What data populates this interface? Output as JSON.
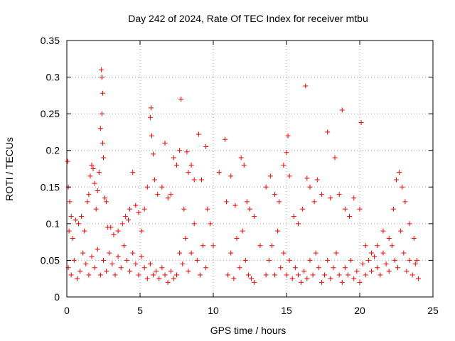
{
  "chart_data": {
    "type": "scatter",
    "title": "Day 242 of 2024, Rate Of TEC Index for receiver mtbu",
    "xlabel": "GPS time / hours",
    "ylabel": "ROTI / TECUs",
    "xlim": [
      0,
      25
    ],
    "ylim": [
      0,
      0.35
    ],
    "x_ticks": [
      0,
      5,
      10,
      15,
      20,
      25
    ],
    "y_ticks": [
      0,
      0.05,
      0.1,
      0.15,
      0.2,
      0.25,
      0.3,
      0.35
    ],
    "x_tick_labels": [
      "0",
      "5",
      "10",
      "15",
      "20",
      "25"
    ],
    "y_tick_labels": [
      "0",
      "0.05",
      "0.1",
      "0.15",
      "0.2",
      "0.25",
      "0.3",
      "0.35"
    ],
    "grid": true,
    "legend": "none",
    "marker": "plus",
    "color": "#ff0000",
    "series": [
      {
        "values": [
          [
            0.05,
            0.185
          ],
          [
            0.1,
            0.15
          ],
          [
            0.2,
            0.13
          ],
          [
            0.15,
            0.09
          ],
          [
            0.3,
            0.11
          ],
          [
            0.4,
            0.08
          ],
          [
            0.6,
            0.105
          ],
          [
            0.8,
            0.1
          ],
          [
            1.0,
            0.11
          ],
          [
            1.2,
            0.09
          ],
          [
            1.4,
            0.13
          ],
          [
            1.5,
            0.14
          ],
          [
            1.6,
            0.165
          ],
          [
            1.7,
            0.18
          ],
          [
            1.8,
            0.175
          ],
          [
            1.9,
            0.155
          ],
          [
            2.0,
            0.12
          ],
          [
            2.1,
            0.145
          ],
          [
            2.2,
            0.17
          ],
          [
            2.3,
            0.23
          ],
          [
            2.35,
            0.31
          ],
          [
            2.4,
            0.3
          ],
          [
            2.45,
            0.278
          ],
          [
            2.4,
            0.25
          ],
          [
            2.45,
            0.21
          ],
          [
            2.5,
            0.19
          ],
          [
            2.6,
            0.135
          ],
          [
            2.7,
            0.13
          ],
          [
            2.8,
            0.095
          ],
          [
            3.0,
            0.095
          ],
          [
            3.2,
            0.085
          ],
          [
            3.5,
            0.09
          ],
          [
            3.8,
            0.1
          ],
          [
            4.0,
            0.11
          ],
          [
            4.2,
            0.105
          ],
          [
            4.3,
            0.12
          ],
          [
            4.5,
            0.17
          ],
          [
            4.7,
            0.125
          ],
          [
            4.9,
            0.115
          ],
          [
            5.1,
            0.09
          ],
          [
            5.3,
            0.12
          ],
          [
            5.5,
            0.15
          ],
          [
            5.7,
            0.245
          ],
          [
            5.75,
            0.258
          ],
          [
            5.8,
            0.22
          ],
          [
            5.9,
            0.195
          ],
          [
            6.0,
            0.16
          ],
          [
            6.2,
            0.14
          ],
          [
            6.5,
            0.15
          ],
          [
            6.7,
            0.21
          ],
          [
            6.9,
            0.135
          ],
          [
            7.1,
            0.14
          ],
          [
            7.3,
            0.19
          ],
          [
            7.5,
            0.18
          ],
          [
            7.7,
            0.2
          ],
          [
            7.8,
            0.27
          ],
          [
            8.0,
            0.12
          ],
          [
            8.2,
            0.198
          ],
          [
            8.3,
            0.17
          ],
          [
            8.5,
            0.18
          ],
          [
            8.7,
            0.16
          ],
          [
            9.0,
            0.222
          ],
          [
            9.2,
            0.16
          ],
          [
            9.5,
            0.205
          ],
          [
            9.6,
            0.12
          ],
          [
            9.8,
            0.1
          ],
          [
            10.0,
            0.07
          ],
          [
            10.4,
            0.17
          ],
          [
            10.8,
            0.215
          ],
          [
            10.9,
            0.13
          ],
          [
            11.2,
            0.165
          ],
          [
            11.5,
            0.125
          ],
          [
            11.9,
            0.19
          ],
          [
            12.1,
            0.18
          ],
          [
            12.3,
            0.13
          ],
          [
            12.5,
            0.12
          ],
          [
            12.8,
            0.11
          ],
          [
            13.2,
            0.07
          ],
          [
            13.6,
            0.15
          ],
          [
            13.9,
            0.165
          ],
          [
            14.2,
            0.14
          ],
          [
            14.5,
            0.13
          ],
          [
            14.8,
            0.18
          ],
          [
            15.0,
            0.197
          ],
          [
            15.1,
            0.22
          ],
          [
            15.2,
            0.165
          ],
          [
            15.5,
            0.11
          ],
          [
            15.8,
            0.1
          ],
          [
            16.1,
            0.12
          ],
          [
            16.3,
            0.288
          ],
          [
            16.4,
            0.162
          ],
          [
            16.6,
            0.15
          ],
          [
            16.9,
            0.13
          ],
          [
            17.1,
            0.16
          ],
          [
            17.4,
            0.14
          ],
          [
            17.8,
            0.225
          ],
          [
            18.0,
            0.135
          ],
          [
            18.3,
            0.19
          ],
          [
            18.6,
            0.14
          ],
          [
            18.8,
            0.255
          ],
          [
            19.0,
            0.12
          ],
          [
            19.3,
            0.11
          ],
          [
            19.6,
            0.135
          ],
          [
            20.0,
            0.12
          ],
          [
            20.1,
            0.238
          ],
          [
            20.4,
            0.07
          ],
          [
            20.8,
            0.06
          ],
          [
            21.2,
            0.07
          ],
          [
            21.6,
            0.09
          ],
          [
            22.0,
            0.08
          ],
          [
            22.3,
            0.12
          ],
          [
            22.5,
            0.16
          ],
          [
            22.7,
            0.17
          ],
          [
            22.9,
            0.15
          ],
          [
            23.1,
            0.13
          ],
          [
            23.4,
            0.1
          ],
          [
            23.7,
            0.08
          ],
          [
            23.9,
            0.05
          ],
          [
            0.1,
            0.04
          ],
          [
            0.3,
            0.03
          ],
          [
            0.5,
            0.05
          ],
          [
            0.7,
            0.025
          ],
          [
            0.9,
            0.035
          ],
          [
            1.1,
            0.06
          ],
          [
            1.3,
            0.045
          ],
          [
            1.5,
            0.03
          ],
          [
            1.7,
            0.055
          ],
          [
            1.9,
            0.04
          ],
          [
            2.1,
            0.065
          ],
          [
            2.3,
            0.03
          ],
          [
            2.5,
            0.05
          ],
          [
            2.7,
            0.035
          ],
          [
            2.9,
            0.06
          ],
          [
            3.1,
            0.045
          ],
          [
            3.3,
            0.03
          ],
          [
            3.5,
            0.055
          ],
          [
            3.7,
            0.04
          ],
          [
            3.9,
            0.07
          ],
          [
            4.1,
            0.05
          ],
          [
            4.3,
            0.035
          ],
          [
            4.5,
            0.06
          ],
          [
            4.7,
            0.045
          ],
          [
            4.9,
            0.03
          ],
          [
            5.1,
            0.055
          ],
          [
            5.3,
            0.04
          ],
          [
            5.5,
            0.025
          ],
          [
            5.7,
            0.045
          ],
          [
            5.9,
            0.03
          ],
          [
            6.1,
            0.035
          ],
          [
            6.3,
            0.025
          ],
          [
            6.5,
            0.04
          ],
          [
            6.7,
            0.03
          ],
          [
            6.9,
            0.02
          ],
          [
            7.1,
            0.035
          ],
          [
            7.3,
            0.025
          ],
          [
            7.5,
            0.03
          ],
          [
            7.7,
            0.06
          ],
          [
            7.9,
            0.045
          ],
          [
            8.1,
            0.08
          ],
          [
            8.3,
            0.035
          ],
          [
            8.5,
            0.06
          ],
          [
            8.7,
            0.1
          ],
          [
            8.9,
            0.05
          ],
          [
            9.1,
            0.03
          ],
          [
            9.3,
            0.07
          ],
          [
            9.5,
            0.04
          ],
          [
            11.0,
            0.03
          ],
          [
            11.2,
            0.06
          ],
          [
            11.4,
            0.025
          ],
          [
            11.6,
            0.08
          ],
          [
            11.8,
            0.04
          ],
          [
            12.0,
            0.09
          ],
          [
            12.2,
            0.05
          ],
          [
            12.4,
            0.03
          ],
          [
            12.6,
            0.025
          ],
          [
            12.8,
            0.02
          ],
          [
            13.6,
            0.03
          ],
          [
            13.8,
            0.05
          ],
          [
            14.0,
            0.07
          ],
          [
            14.2,
            0.03
          ],
          [
            14.4,
            0.09
          ],
          [
            14.6,
            0.04
          ],
          [
            14.8,
            0.06
          ],
          [
            15.0,
            0.03
          ],
          [
            15.2,
            0.05
          ],
          [
            15.4,
            0.025
          ],
          [
            15.6,
            0.04
          ],
          [
            15.8,
            0.03
          ],
          [
            16.0,
            0.02
          ],
          [
            16.2,
            0.035
          ],
          [
            16.4,
            0.025
          ],
          [
            16.6,
            0.05
          ],
          [
            16.8,
            0.03
          ],
          [
            17.0,
            0.06
          ],
          [
            17.2,
            0.04
          ],
          [
            17.4,
            0.02
          ],
          [
            17.6,
            0.03
          ],
          [
            17.8,
            0.05
          ],
          [
            18.0,
            0.025
          ],
          [
            18.2,
            0.04
          ],
          [
            18.4,
            0.06
          ],
          [
            18.6,
            0.03
          ],
          [
            18.8,
            0.02
          ],
          [
            19.0,
            0.04
          ],
          [
            19.2,
            0.03
          ],
          [
            19.4,
            0.05
          ],
          [
            19.6,
            0.025
          ],
          [
            19.8,
            0.035
          ],
          [
            20.0,
            0.02
          ],
          [
            20.2,
            0.045
          ],
          [
            20.4,
            0.03
          ],
          [
            20.6,
            0.05
          ],
          [
            20.8,
            0.035
          ],
          [
            21.0,
            0.055
          ],
          [
            21.2,
            0.04
          ],
          [
            21.4,
            0.03
          ],
          [
            21.6,
            0.06
          ],
          [
            21.8,
            0.045
          ],
          [
            22.0,
            0.035
          ],
          [
            22.2,
            0.07
          ],
          [
            22.4,
            0.05
          ],
          [
            22.6,
            0.04
          ],
          [
            22.8,
            0.09
          ],
          [
            23.0,
            0.06
          ],
          [
            23.2,
            0.035
          ],
          [
            23.4,
            0.05
          ],
          [
            23.6,
            0.03
          ],
          [
            23.8,
            0.045
          ],
          [
            24.0,
            0.025
          ]
        ]
      }
    ]
  }
}
